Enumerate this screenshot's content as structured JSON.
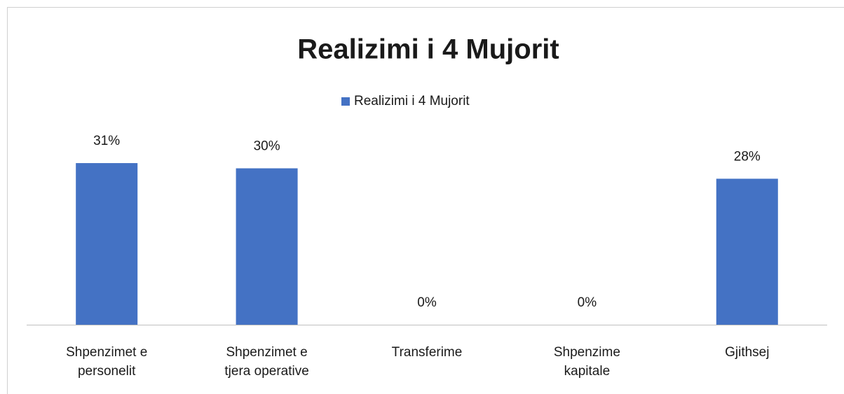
{
  "chart_data": {
    "type": "bar",
    "title": "Realizimi i 4 Mujorit",
    "categories": [
      "Shpenzimet e personelit",
      "Shpenzimet e tjera operative",
      "Transferime",
      "Shpenzime kapitale",
      "Gjithsej"
    ],
    "series": [
      {
        "name": "Realizimi i 4 Mujorit",
        "color": "#4472c4",
        "values": [
          31,
          30,
          0,
          0,
          28
        ],
        "value_labels": [
          "31%",
          "30%",
          "0%",
          "0%",
          "28%"
        ]
      }
    ],
    "legend": "top"
  }
}
